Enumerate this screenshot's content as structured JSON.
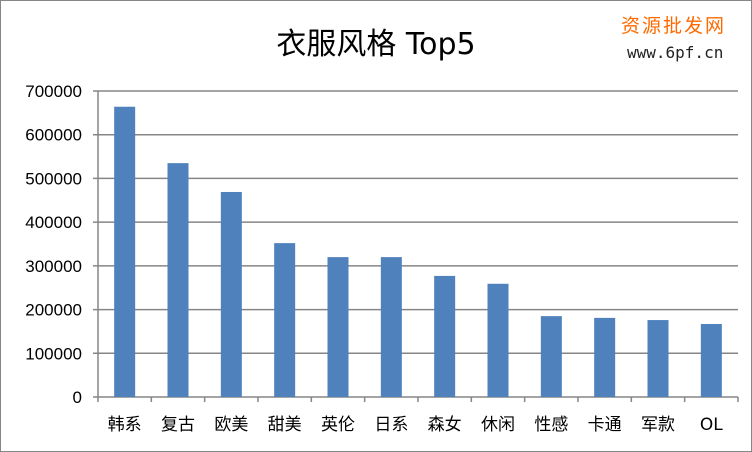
{
  "chart_data": {
    "type": "bar",
    "title": "衣服风格 Top5",
    "categories": [
      "韩系",
      "复古",
      "欧美",
      "甜美",
      "英伦",
      "日系",
      "森女",
      "休闲",
      "性感",
      "卡通",
      "军款",
      "OL"
    ],
    "values": [
      664000,
      535000,
      469000,
      352000,
      320000,
      320000,
      277000,
      259000,
      185000,
      181000,
      176000,
      167000
    ],
    "ylim": [
      0,
      700000
    ],
    "yticks": [
      "0",
      "100000",
      "200000",
      "300000",
      "400000",
      "500000",
      "600000",
      "700000"
    ],
    "grid": true,
    "legend": "none",
    "xlabel": "",
    "ylabel": "",
    "bar_color": "#4f81bd"
  },
  "watermark": {
    "line1": "资源批发网",
    "line2": "www.6pf.cn"
  }
}
